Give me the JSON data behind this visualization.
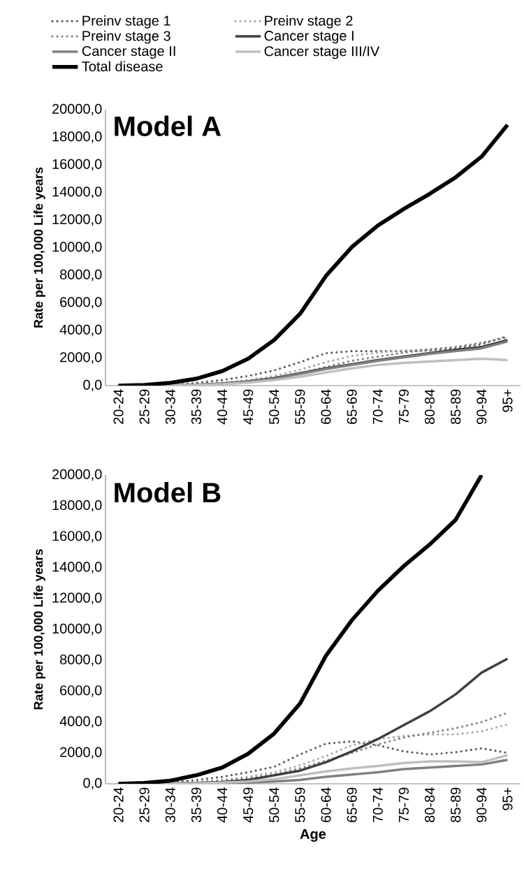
{
  "chart_data": [
    {
      "type": "line",
      "title": "Model A",
      "ylabel": "Rate per 100,000 Life years",
      "legend": "top",
      "categories": [
        "20-24",
        "25-29",
        "30-34",
        "35-39",
        "40-44",
        "45-49",
        "50-54",
        "55-59",
        "60-64",
        "65-69",
        "70-74",
        "75-79",
        "80-84",
        "85-89",
        "90-94",
        "95+"
      ],
      "ylim": [
        0,
        20000
      ],
      "yticks": [
        {
          "value": 0,
          "label": "0,0"
        },
        {
          "value": 2000,
          "label": "2000,0"
        },
        {
          "value": 4000,
          "label": "4000,0"
        },
        {
          "value": 6000,
          "label": "6000,0"
        },
        {
          "value": 8000,
          "label": "8000,0"
        },
        {
          "value": 10000,
          "label": "10000,0"
        },
        {
          "value": 12000,
          "label": "12000,0"
        },
        {
          "value": 14000,
          "label": "14000,0"
        },
        {
          "value": 16000,
          "label": "16000,0"
        },
        {
          "value": 18000,
          "label": "18000,0"
        },
        {
          "value": 20000,
          "label": "20000,0"
        }
      ],
      "series": [
        {
          "name": "Preinv stage 1",
          "color": "#595959",
          "line_style": "dotted",
          "values": [
            0,
            10,
            50,
            200,
            400,
            700,
            1100,
            1700,
            2350,
            2500,
            2500,
            2500,
            2550,
            2700,
            3000,
            3600
          ]
        },
        {
          "name": "Preinv stage 2",
          "color": "#a6a6a6",
          "line_style": "dotted",
          "values": [
            0,
            5,
            20,
            80,
            200,
            400,
            700,
            1150,
            1700,
            2150,
            2400,
            2550,
            2650,
            2800,
            3100,
            3500
          ]
        },
        {
          "name": "Preinv stage 3",
          "color": "#7f7f7f",
          "line_style": "dotted",
          "values": [
            0,
            5,
            20,
            60,
            150,
            300,
            550,
            900,
            1350,
            1800,
            2100,
            2400,
            2600,
            2800,
            3100,
            3500
          ]
        },
        {
          "name": "Cancer stage I",
          "color": "#404040",
          "line_style": "solid",
          "values": [
            0,
            5,
            20,
            60,
            150,
            300,
            550,
            900,
            1250,
            1550,
            1850,
            2100,
            2350,
            2600,
            2800,
            3300
          ]
        },
        {
          "name": "Cancer stage II",
          "color": "#808080",
          "line_style": "solid",
          "values": [
            0,
            5,
            20,
            50,
            130,
            280,
            500,
            850,
            1200,
            1500,
            1800,
            2050,
            2300,
            2500,
            2700,
            3200
          ]
        },
        {
          "name": "Cancer stage III/IV",
          "color": "#bfbfbf",
          "line_style": "solid",
          "values": [
            0,
            5,
            15,
            40,
            100,
            220,
            400,
            650,
            950,
            1250,
            1500,
            1650,
            1750,
            1850,
            1950,
            1850
          ]
        },
        {
          "name": "Total disease",
          "color": "#000000",
          "line_style": "solid",
          "values": [
            0,
            50,
            200,
            500,
            1050,
            1950,
            3300,
            5200,
            7950,
            10050,
            11600,
            12800,
            13900,
            15100,
            16600,
            18900
          ]
        }
      ]
    },
    {
      "type": "line",
      "title": "Model B",
      "ylabel": "Rate per 100,000 Life years",
      "xlabel": "Age",
      "categories": [
        "20-24",
        "25-29",
        "30-34",
        "35-39",
        "40-44",
        "45-49",
        "50-54",
        "55-59",
        "60-64",
        "65-69",
        "70-74",
        "75-79",
        "80-84",
        "85-89",
        "90-94",
        "95+"
      ],
      "ylim": [
        0,
        20000
      ],
      "yticks": [
        {
          "value": 0,
          "label": "0,0"
        },
        {
          "value": 2000,
          "label": "2000,0"
        },
        {
          "value": 4000,
          "label": "4000,0"
        },
        {
          "value": 6000,
          "label": "6000,0"
        },
        {
          "value": 8000,
          "label": "8000,0"
        },
        {
          "value": 10000,
          "label": "10000,0"
        },
        {
          "value": 12000,
          "label": "12000,0"
        },
        {
          "value": 14000,
          "label": "14000,0"
        },
        {
          "value": 16000,
          "label": "16000,0"
        },
        {
          "value": 18000,
          "label": "18000,0"
        },
        {
          "value": 20000,
          "label": "20000,0"
        }
      ],
      "series": [
        {
          "color": "#595959",
          "line_style": "dotted",
          "values": [
            0,
            20,
            80,
            250,
            450,
            750,
            1100,
            1900,
            2600,
            2750,
            2500,
            2100,
            1900,
            2050,
            2300,
            2000
          ]
        },
        {
          "color": "#a6a6a6",
          "line_style": "dotted",
          "values": [
            0,
            10,
            40,
            100,
            250,
            450,
            750,
            1200,
            1800,
            2500,
            2900,
            3100,
            3200,
            3200,
            3400,
            3850
          ]
        },
        {
          "color": "#7f7f7f",
          "line_style": "dotted",
          "values": [
            0,
            10,
            40,
            100,
            200,
            350,
            600,
            1000,
            1500,
            2000,
            2550,
            3000,
            3300,
            3600,
            4000,
            4600
          ]
        },
        {
          "color": "#404040",
          "line_style": "solid",
          "values": [
            0,
            10,
            30,
            60,
            120,
            250,
            550,
            850,
            1400,
            2100,
            2900,
            3800,
            4700,
            5800,
            7200,
            8100
          ]
        },
        {
          "color": "#808080",
          "line_style": "solid",
          "values": [
            0,
            5,
            10,
            20,
            40,
            80,
            150,
            250,
            450,
            600,
            750,
            950,
            1050,
            1150,
            1250,
            1550
          ]
        },
        {
          "color": "#bfbfbf",
          "line_style": "solid",
          "values": [
            0,
            5,
            20,
            40,
            80,
            150,
            300,
            550,
            800,
            1000,
            1150,
            1350,
            1450,
            1450,
            1400,
            1850
          ]
        },
        {
          "color": "#000000",
          "line_style": "solid",
          "values": [
            0,
            50,
            200,
            550,
            1050,
            1950,
            3250,
            5200,
            8300,
            10600,
            12500,
            14100,
            15500,
            17100,
            20000,
            null
          ]
        }
      ]
    }
  ]
}
